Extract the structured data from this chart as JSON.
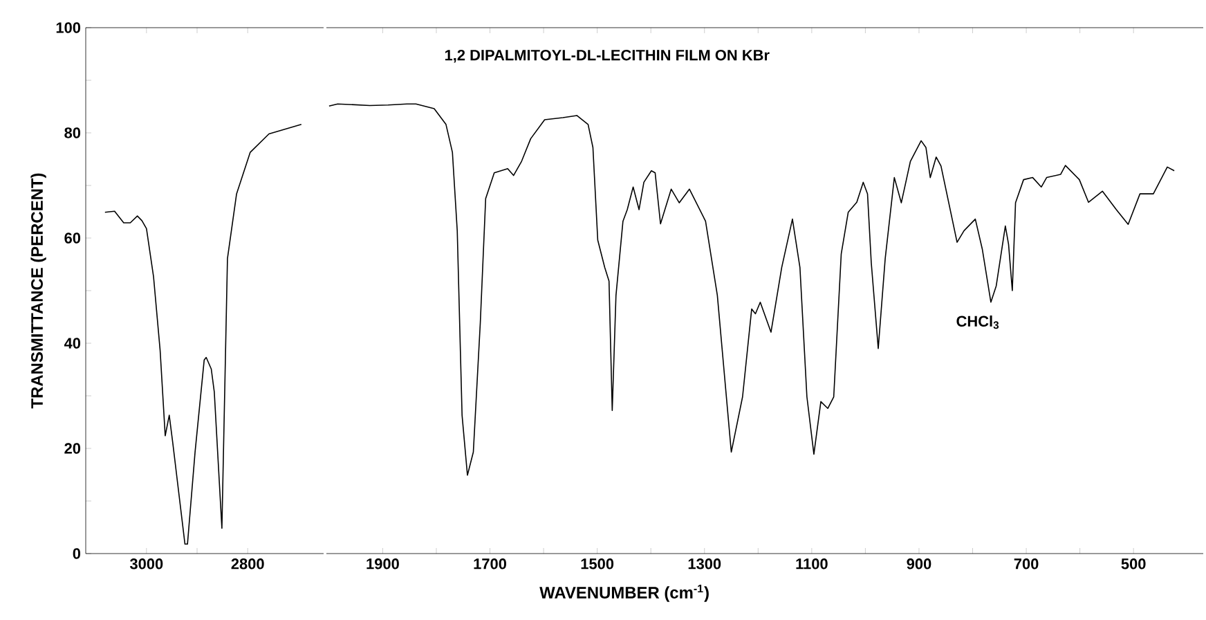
{
  "chart_data": [
    {
      "type": "line",
      "ylabel": "TRANSMITTANCE (PERCENT)",
      "xlim": [
        3120,
        2650
      ],
      "ylim": [
        0,
        100
      ],
      "xticks": [
        3000,
        {
          "value": 2900,
          "label": null
        },
        2800
      ],
      "yticks": [
        0,
        {
          "value": 10,
          "label": null
        },
        20,
        {
          "value": 30,
          "label": null
        },
        40,
        {
          "value": 50,
          "label": null
        },
        60,
        {
          "value": 70,
          "label": null
        },
        80,
        {
          "value": 90,
          "label": null
        },
        100
      ],
      "grid": false,
      "marker": "none",
      "line_style": "solid",
      "series": [
        {
          "color": "#000000",
          "x": [
            3082,
            3063,
            3045,
            3032,
            3018,
            3009,
            3000,
            2986,
            2973,
            2963,
            2955,
            2948,
            2924,
            2919,
            2904,
            2886,
            2882,
            2872,
            2866,
            2851,
            2840,
            2822,
            2795,
            2758,
            2694
          ],
          "values": [
            64.9,
            65.1,
            62.9,
            62.9,
            64.2,
            63.3,
            61.8,
            52.6,
            38.6,
            22.4,
            26.3,
            21,
            1.8,
            1.8,
            19.3,
            36.8,
            37.3,
            35.1,
            30.7,
            4.8,
            56.1,
            68.4,
            76.3,
            79.8,
            81.6
          ]
        }
      ]
    },
    {
      "type": "line",
      "title": "1,2 DIPALMITOYL-DL-LECITHIN FILM ON KBr",
      "xlabel": "WAVENUMBER (cm$^{-1}$)",
      "xlim": [
        2005,
        370
      ],
      "ylim": [
        0,
        100
      ],
      "xticks": [
        1900,
        {
          "value": 1800,
          "label": null
        },
        1700,
        {
          "value": 1600,
          "label": null
        },
        1500,
        {
          "value": 1400,
          "label": null
        },
        1300,
        {
          "value": 1200,
          "label": null
        },
        1100,
        {
          "value": 1000,
          "label": null
        },
        900,
        {
          "value": 800,
          "label": null
        },
        700,
        {
          "value": 600,
          "label": null
        },
        500
      ],
      "tick_labels": "x",
      "grid": false,
      "marker": "none",
      "line_style": "solid",
      "annotations": [
        "CHCl$_{3}$"
      ],
      "series": [
        {
          "color": "#000000",
          "x": [
            2000,
            1984,
            1924,
            1890,
            1855,
            1838,
            1804,
            1782,
            1770,
            1761,
            1752,
            1742,
            1731,
            1718,
            1708,
            1692,
            1667,
            1656,
            1641,
            1624,
            1598,
            1564,
            1538,
            1517,
            1508,
            1499,
            1486,
            1478,
            1472,
            1465,
            1452,
            1444,
            1433,
            1422,
            1413,
            1399,
            1392,
            1382,
            1362,
            1347,
            1328,
            1298,
            1276,
            1250,
            1229,
            1212,
            1205,
            1196,
            1176,
            1156,
            1136,
            1122,
            1109,
            1096,
            1083,
            1070,
            1059,
            1045,
            1032,
            1016,
            1004,
            996,
            989,
            976,
            963,
            946,
            933,
            916,
            896,
            887,
            879,
            868,
            859,
            829,
            816,
            795,
            782,
            766,
            756,
            739,
            733,
            726,
            720,
            705,
            688,
            672,
            662,
            636,
            627,
            601,
            584,
            558,
            532,
            510,
            488,
            463,
            437,
            424
          ],
          "values": [
            85.1,
            85.5,
            85.2,
            85.3,
            85.5,
            85.5,
            84.6,
            81.6,
            76.3,
            61.4,
            26.3,
            14.9,
            19.3,
            43.9,
            67.5,
            72.4,
            73.2,
            71.9,
            74.6,
            78.9,
            82.5,
            82.9,
            83.3,
            81.6,
            77.2,
            59.6,
            54.4,
            51.8,
            27.2,
            49.1,
            63.2,
            65.4,
            69.7,
            65.4,
            70.6,
            72.8,
            72.4,
            62.7,
            69.3,
            66.7,
            69.3,
            63.2,
            49.1,
            19.3,
            29.8,
            46.5,
            45.6,
            47.8,
            42.1,
            54.4,
            63.6,
            54.4,
            29.8,
            18.9,
            28.9,
            27.6,
            29.8,
            57,
            64.9,
            66.8,
            70.6,
            68.4,
            55.3,
            39,
            56.1,
            71.5,
            66.7,
            74.6,
            78.5,
            77.2,
            71.5,
            75.4,
            73.7,
            59.2,
            61.4,
            63.6,
            57.9,
            47.8,
            50.9,
            62.3,
            58.8,
            50,
            66.7,
            71.1,
            71.5,
            69.7,
            71.5,
            72.1,
            73.8,
            71.1,
            66.8,
            68.9,
            65.4,
            62.6,
            68.4,
            68.4,
            73.5,
            72.8
          ]
        }
      ]
    }
  ]
}
